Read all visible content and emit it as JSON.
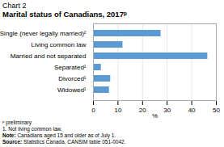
{
  "chart_data": {
    "type": "bar",
    "orientation": "horizontal",
    "title": "Chart 2",
    "subtitle": "Marital status of Canadians, 2017ᵖ",
    "categories": [
      "Single (never legally married)²",
      "Living common law",
      "Married and not separated",
      "Separated¹",
      "Divorced¹",
      "Widowed¹"
    ],
    "values": [
      27.5,
      12.0,
      46.5,
      3.2,
      7.0,
      6.5
    ],
    "color": "#5b9bd5",
    "xlim": [
      0,
      50
    ],
    "xticks": [
      0,
      10,
      20,
      30,
      40,
      50
    ],
    "xlabel": "%",
    "grid": true,
    "annotations": [
      "ᵖ preliminary",
      "1. Not living common law.",
      "Note: Canadians aged 15 and older as of July 1.",
      "Source: Statistics Canada, CANSIM table 051-0042."
    ]
  }
}
